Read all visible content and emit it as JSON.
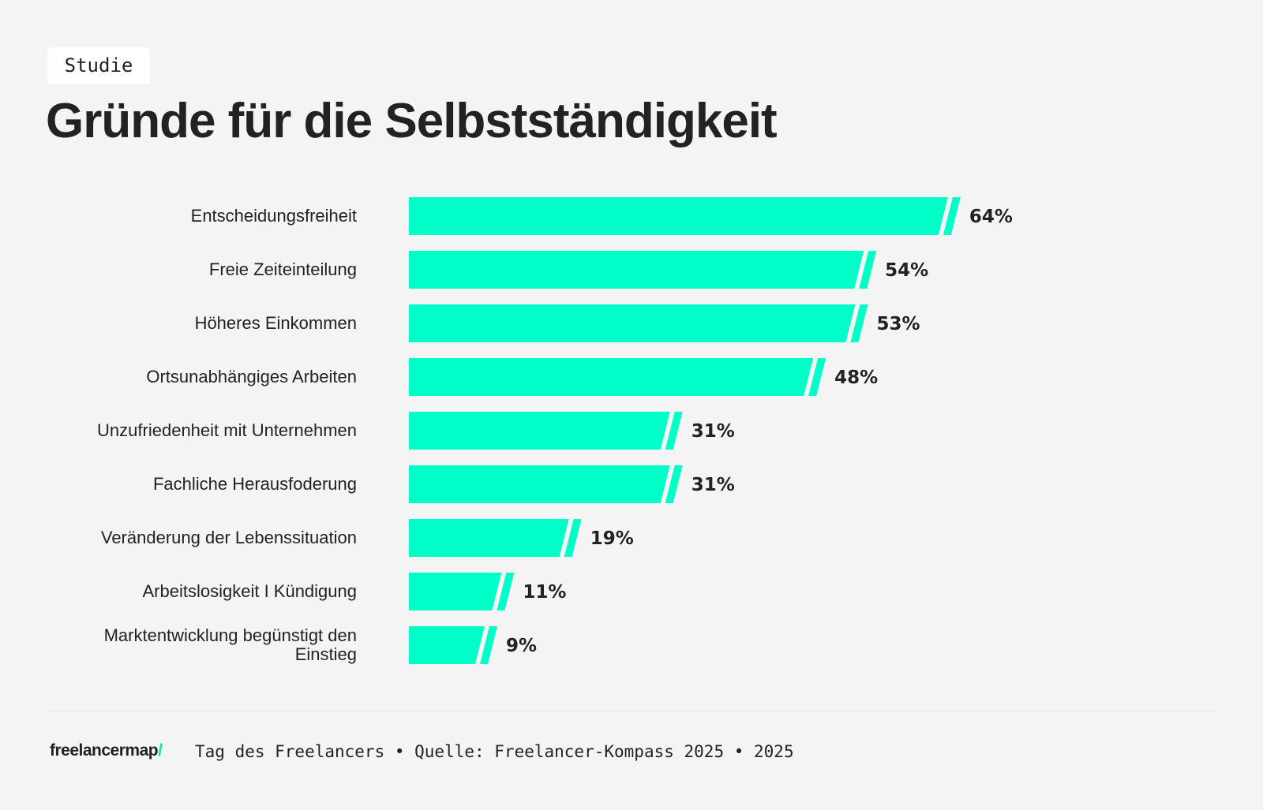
{
  "badge": "Studie",
  "footer": {
    "logo": "freelancermap",
    "text": "Tag des Freelancers • Quelle: Freelancer-Kompass 2025 • 2025"
  },
  "chart_data": {
    "type": "bar",
    "orientation": "horizontal",
    "title": "Gründe für die Selbstständigkeit",
    "categories": [
      "Entscheidungsfreiheit",
      "Freie Zeiteinteilung",
      "Höheres Einkommen",
      "Ortsunabhängiges Arbeiten",
      "Unzufriedenheit mit Unternehmen",
      "Fachliche Herausfoderung",
      "Veränderung der Lebenssituation",
      "Arbeitslosigkeit I Kündigung",
      "Marktentwicklung begünstigt den Einstieg"
    ],
    "values": [
      64,
      54,
      53,
      48,
      31,
      31,
      19,
      11,
      9
    ],
    "value_labels": [
      "64%",
      "54%",
      "53%",
      "48%",
      "31%",
      "31%",
      "19%",
      "11%",
      "9%"
    ],
    "color": "#00ffc8"
  }
}
